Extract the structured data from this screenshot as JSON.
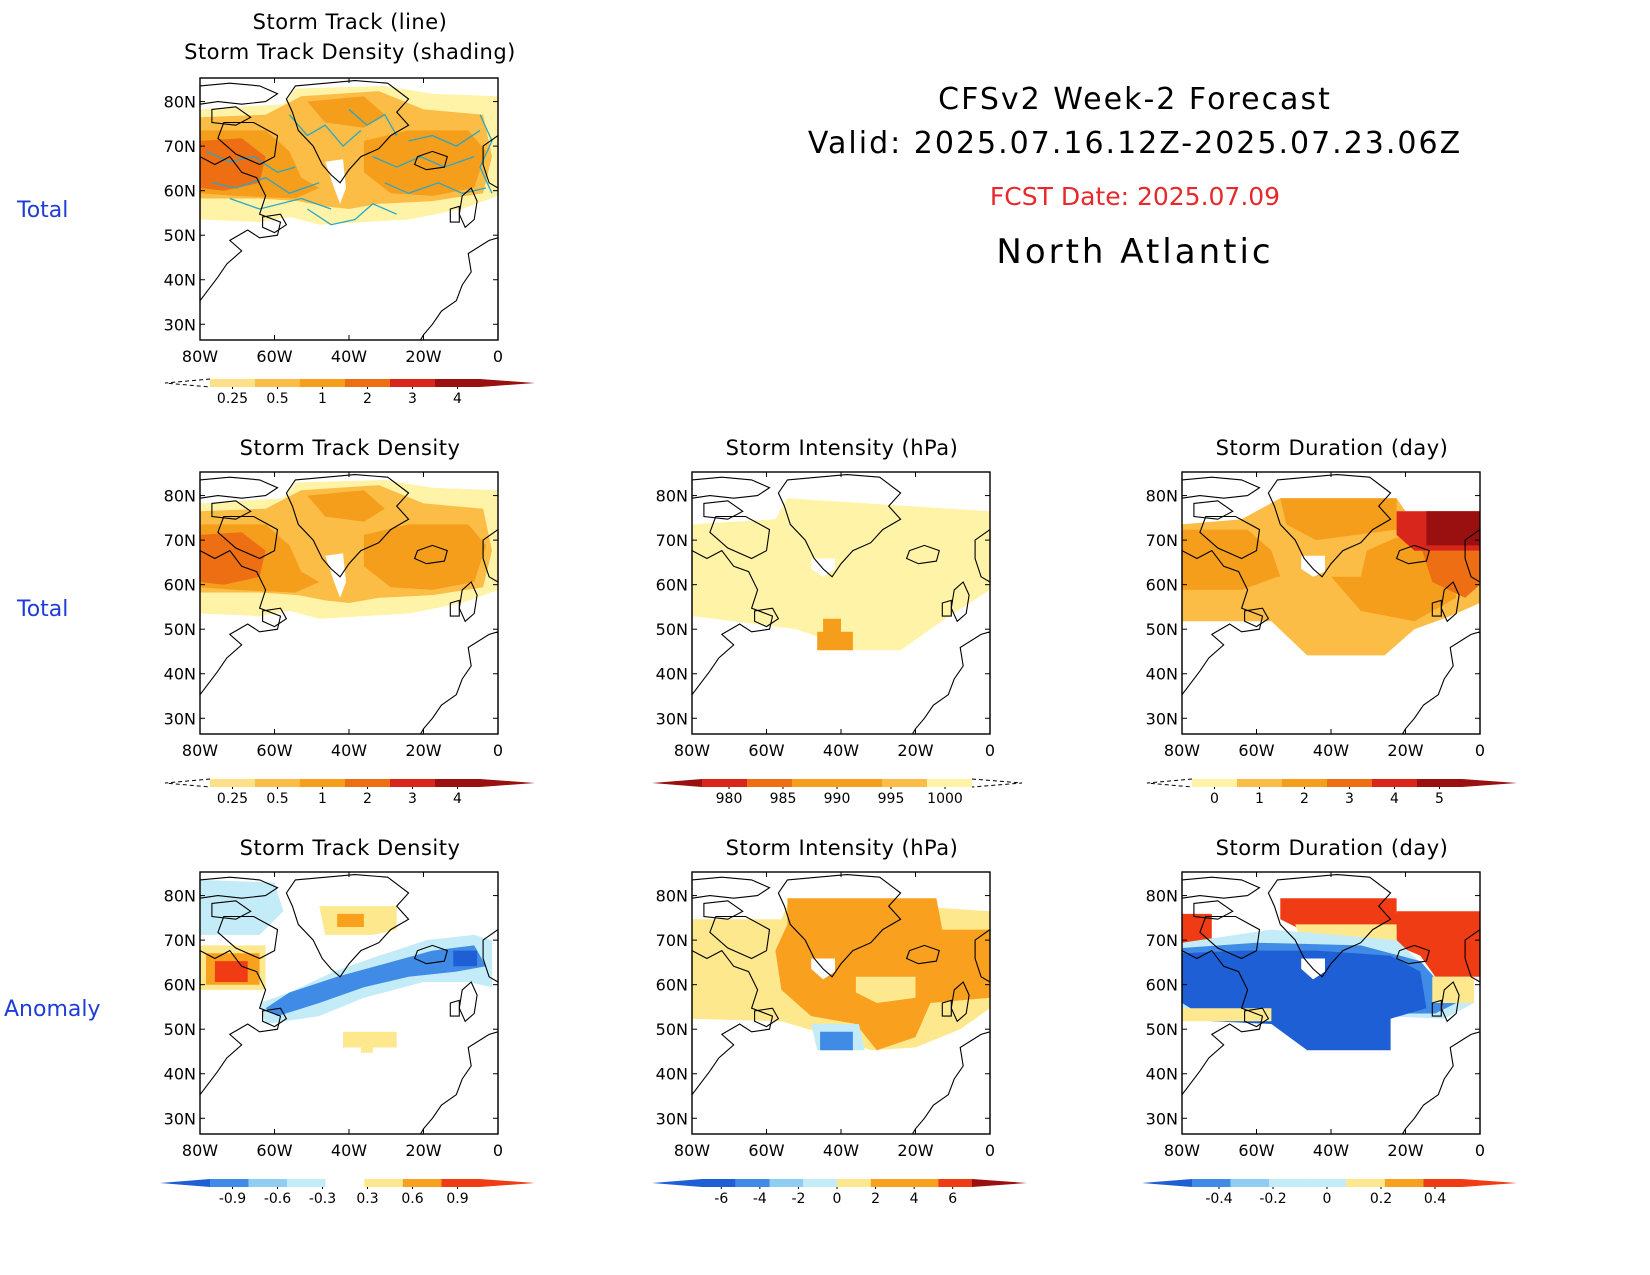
{
  "header": {
    "line1": "CFSv2 Week-2 Forecast",
    "line2": "Valid: 2025.07.16.12Z-2025.07.23.06Z",
    "fcst": "FCST Date: 2025.07.09",
    "region": "North Atlantic"
  },
  "row_labels": {
    "row1": "Total",
    "row2": "Total",
    "row3": "Anomaly"
  },
  "axes": {
    "lat_labels": [
      "80N",
      "70N",
      "60N",
      "50N",
      "40N",
      "30N"
    ],
    "lon_labels": [
      "80W",
      "60W",
      "40W",
      "20W",
      "0"
    ]
  },
  "colors": {
    "coast": "#000000",
    "track_line": "#2aa7c4",
    "d_light": "#fff3a8",
    "d_yellow": "#fde088",
    "d_lorange": "#fbbd46",
    "d_orange": "#f59e1c",
    "d_dorange": "#ee6e14",
    "d_red": "#d9261c",
    "d_dred": "#9a0f0f",
    "a_dblue": "#1e5fd6",
    "a_blue": "#3f8be6",
    "a_lblue": "#90cdf2",
    "a_pblue": "#c3ecf8",
    "a_pyellow": "#fde88e",
    "a_orange": "#f9a11f",
    "a_red": "#f03c14"
  },
  "panels": [
    {
      "id": "p1",
      "title_lines": [
        "Storm Track (line)",
        "Storm Track Density (shading)"
      ]
    },
    {
      "id": "p2",
      "title_lines": [
        "Storm Track Density"
      ]
    },
    {
      "id": "p3",
      "title_lines": [
        "Storm Intensity (hPa)"
      ]
    },
    {
      "id": "p4",
      "title_lines": [
        "Storm Duration (day)"
      ]
    },
    {
      "id": "p5",
      "title_lines": [
        "Storm Track Density"
      ]
    },
    {
      "id": "p6",
      "title_lines": [
        "Storm Intensity (hPa)"
      ]
    },
    {
      "id": "p7",
      "title_lines": [
        "Storm Duration (day)"
      ]
    }
  ],
  "colorbars": [
    {
      "id": "cb1",
      "labels": [
        "0.25",
        "0.5",
        "1",
        "2",
        "3",
        "4"
      ],
      "colors": [
        "d_yellow",
        "d_lorange",
        "d_orange",
        "d_dorange",
        "d_red",
        "d_dred"
      ],
      "left_dashed": true,
      "right_arrow": "d_dred"
    },
    {
      "id": "cb2",
      "labels": [
        "0.25",
        "0.5",
        "1",
        "2",
        "3",
        "4"
      ],
      "colors": [
        "d_yellow",
        "d_lorange",
        "d_orange",
        "d_dorange",
        "d_red",
        "d_dred"
      ],
      "left_dashed": true,
      "right_arrow": "d_dred"
    },
    {
      "id": "cb3",
      "labels": [
        "980",
        "985",
        "990",
        "995",
        "1000"
      ],
      "colors": [
        "d_red",
        "d_dorange",
        "d_orange",
        "d_orange",
        "d_lorange",
        "d_light"
      ],
      "left_arrow": "d_dred",
      "right_dashed": true
    },
    {
      "id": "cb4",
      "labels": [
        "0",
        "1",
        "2",
        "3",
        "4",
        "5"
      ],
      "colors": [
        "d_light",
        "d_lorange",
        "d_orange",
        "d_dorange",
        "d_red",
        "d_dred"
      ],
      "left_dashed": true,
      "right_arrow": "d_dred"
    },
    {
      "id": "cb5",
      "labels": [
        "-0.9",
        "-0.6",
        "-0.3",
        "0.3",
        "0.6",
        "0.9"
      ],
      "colors": [
        "a_blue",
        "a_lblue",
        "a_pblue",
        "#ffffff",
        "a_pyellow",
        "a_orange",
        "a_red"
      ],
      "left_arrow": "a_dblue",
      "right_arrow": "a_red"
    },
    {
      "id": "cb6",
      "labels": [
        "-6",
        "-4",
        "-2",
        "0",
        "2",
        "4",
        "6"
      ],
      "colors": [
        "a_dblue",
        "a_blue",
        "a_lblue",
        "a_pblue",
        "a_pyellow",
        "a_orange",
        "a_orange",
        "a_red"
      ],
      "left_arrow": "a_dblue",
      "right_arrow": "d_dred"
    },
    {
      "id": "cb7",
      "labels": [
        "-0.4",
        "-0.2",
        "0",
        "0.2",
        "0.4"
      ],
      "colors": [
        "a_blue",
        "a_lblue",
        "a_pblue",
        "a_pblue",
        "a_pyellow",
        "a_orange",
        "a_red"
      ],
      "left_arrow": "a_dblue",
      "right_arrow": "a_red"
    }
  ]
}
